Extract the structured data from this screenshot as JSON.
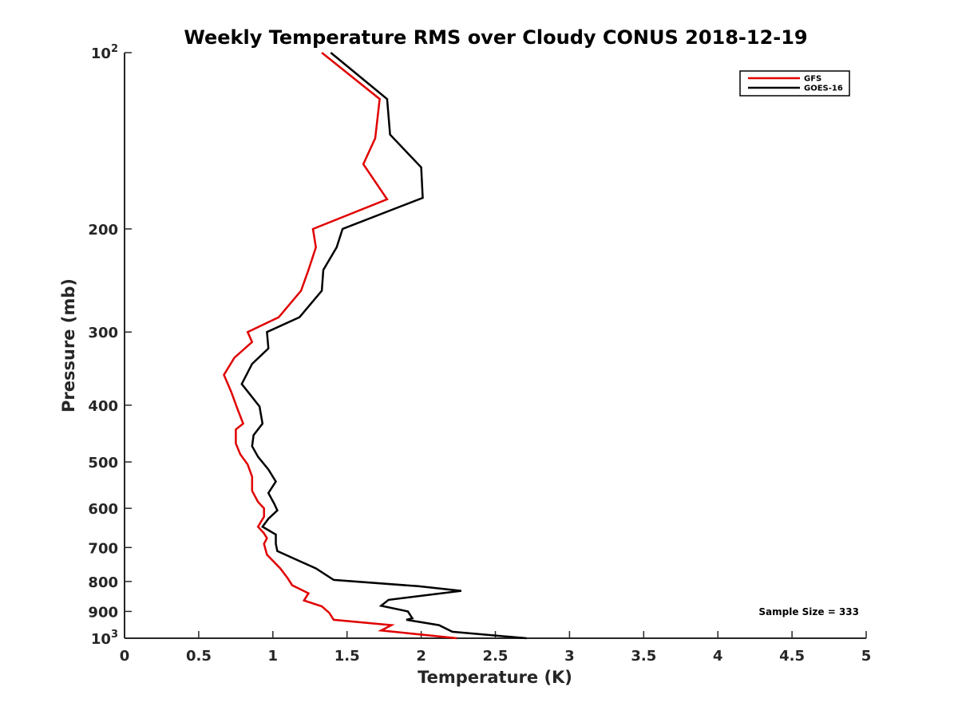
{
  "chart_data": {
    "type": "line",
    "title": "Weekly Temperature RMS over Cloudy CONUS 2018-12-19",
    "xlabel": "Temperature (K)",
    "ylabel": "Pressure (mb)",
    "xlim": [
      0,
      5
    ],
    "ylim": [
      100,
      1000
    ],
    "yscale": "log",
    "y_reversed": true,
    "grid": false,
    "legend_placement": "top-right",
    "x_ticks": [
      "0",
      "0.5",
      "1",
      "1.5",
      "2",
      "2.5",
      "3",
      "3.5",
      "4",
      "4.5",
      "5"
    ],
    "y_ticks": [
      {
        "value": 100,
        "base": "10",
        "exp": "2"
      },
      {
        "value": 200,
        "label": "200"
      },
      {
        "value": 300,
        "label": "300"
      },
      {
        "value": 400,
        "label": "400"
      },
      {
        "value": 500,
        "label": "500"
      },
      {
        "value": 600,
        "label": "600"
      },
      {
        "value": 700,
        "label": "700"
      },
      {
        "value": 800,
        "label": "800"
      },
      {
        "value": 900,
        "label": "900"
      },
      {
        "value": 1000,
        "base": "10",
        "exp": "3"
      }
    ],
    "annotation": "Sample Size = 333",
    "series": [
      {
        "name": "GFS",
        "color": "#e00000",
        "points": [
          [
            1.33,
            100
          ],
          [
            1.72,
            120
          ],
          [
            1.69,
            140
          ],
          [
            1.61,
            155
          ],
          [
            1.77,
            178
          ],
          [
            1.27,
            200
          ],
          [
            1.29,
            215
          ],
          [
            1.24,
            235
          ],
          [
            1.19,
            255
          ],
          [
            1.04,
            283
          ],
          [
            0.83,
            300
          ],
          [
            0.86,
            312
          ],
          [
            0.74,
            332
          ],
          [
            0.67,
            355
          ],
          [
            0.72,
            380
          ],
          [
            0.76,
            405
          ],
          [
            0.8,
            430
          ],
          [
            0.75,
            440
          ],
          [
            0.75,
            465
          ],
          [
            0.78,
            485
          ],
          [
            0.83,
            505
          ],
          [
            0.86,
            530
          ],
          [
            0.86,
            560
          ],
          [
            0.9,
            585
          ],
          [
            0.94,
            600
          ],
          [
            0.94,
            620
          ],
          [
            0.9,
            645
          ],
          [
            0.94,
            662
          ],
          [
            0.96,
            675
          ],
          [
            0.94,
            690
          ],
          [
            0.96,
            720
          ],
          [
            1.05,
            760
          ],
          [
            1.1,
            790
          ],
          [
            1.13,
            812
          ],
          [
            1.24,
            838
          ],
          [
            1.21,
            862
          ],
          [
            1.33,
            882
          ],
          [
            1.38,
            905
          ],
          [
            1.41,
            930
          ],
          [
            1.8,
            950
          ],
          [
            1.73,
            970
          ],
          [
            2.24,
            1000
          ]
        ]
      },
      {
        "name": "GOES-16",
        "color": "#000000",
        "points": [
          [
            1.39,
            100
          ],
          [
            1.77,
            120
          ],
          [
            1.79,
            138
          ],
          [
            2.0,
            157
          ],
          [
            2.01,
            177
          ],
          [
            1.47,
            200
          ],
          [
            1.43,
            215
          ],
          [
            1.34,
            235
          ],
          [
            1.33,
            255
          ],
          [
            1.18,
            283
          ],
          [
            0.96,
            300
          ],
          [
            0.97,
            320
          ],
          [
            0.86,
            340
          ],
          [
            0.79,
            368
          ],
          [
            0.91,
            402
          ],
          [
            0.93,
            430
          ],
          [
            0.87,
            450
          ],
          [
            0.86,
            470
          ],
          [
            0.9,
            490
          ],
          [
            0.97,
            515
          ],
          [
            1.02,
            540
          ],
          [
            0.97,
            565
          ],
          [
            1.01,
            590
          ],
          [
            1.03,
            605
          ],
          [
            0.97,
            625
          ],
          [
            0.93,
            645
          ],
          [
            1.02,
            665
          ],
          [
            1.02,
            690
          ],
          [
            1.03,
            710
          ],
          [
            1.29,
            760
          ],
          [
            1.41,
            795
          ],
          [
            1.98,
            815
          ],
          [
            2.27,
            830
          ],
          [
            1.78,
            860
          ],
          [
            1.73,
            880
          ],
          [
            1.91,
            900
          ],
          [
            1.94,
            925
          ],
          [
            1.9,
            930
          ],
          [
            2.12,
            950
          ],
          [
            2.21,
            975
          ],
          [
            2.71,
            1000
          ]
        ]
      }
    ]
  }
}
